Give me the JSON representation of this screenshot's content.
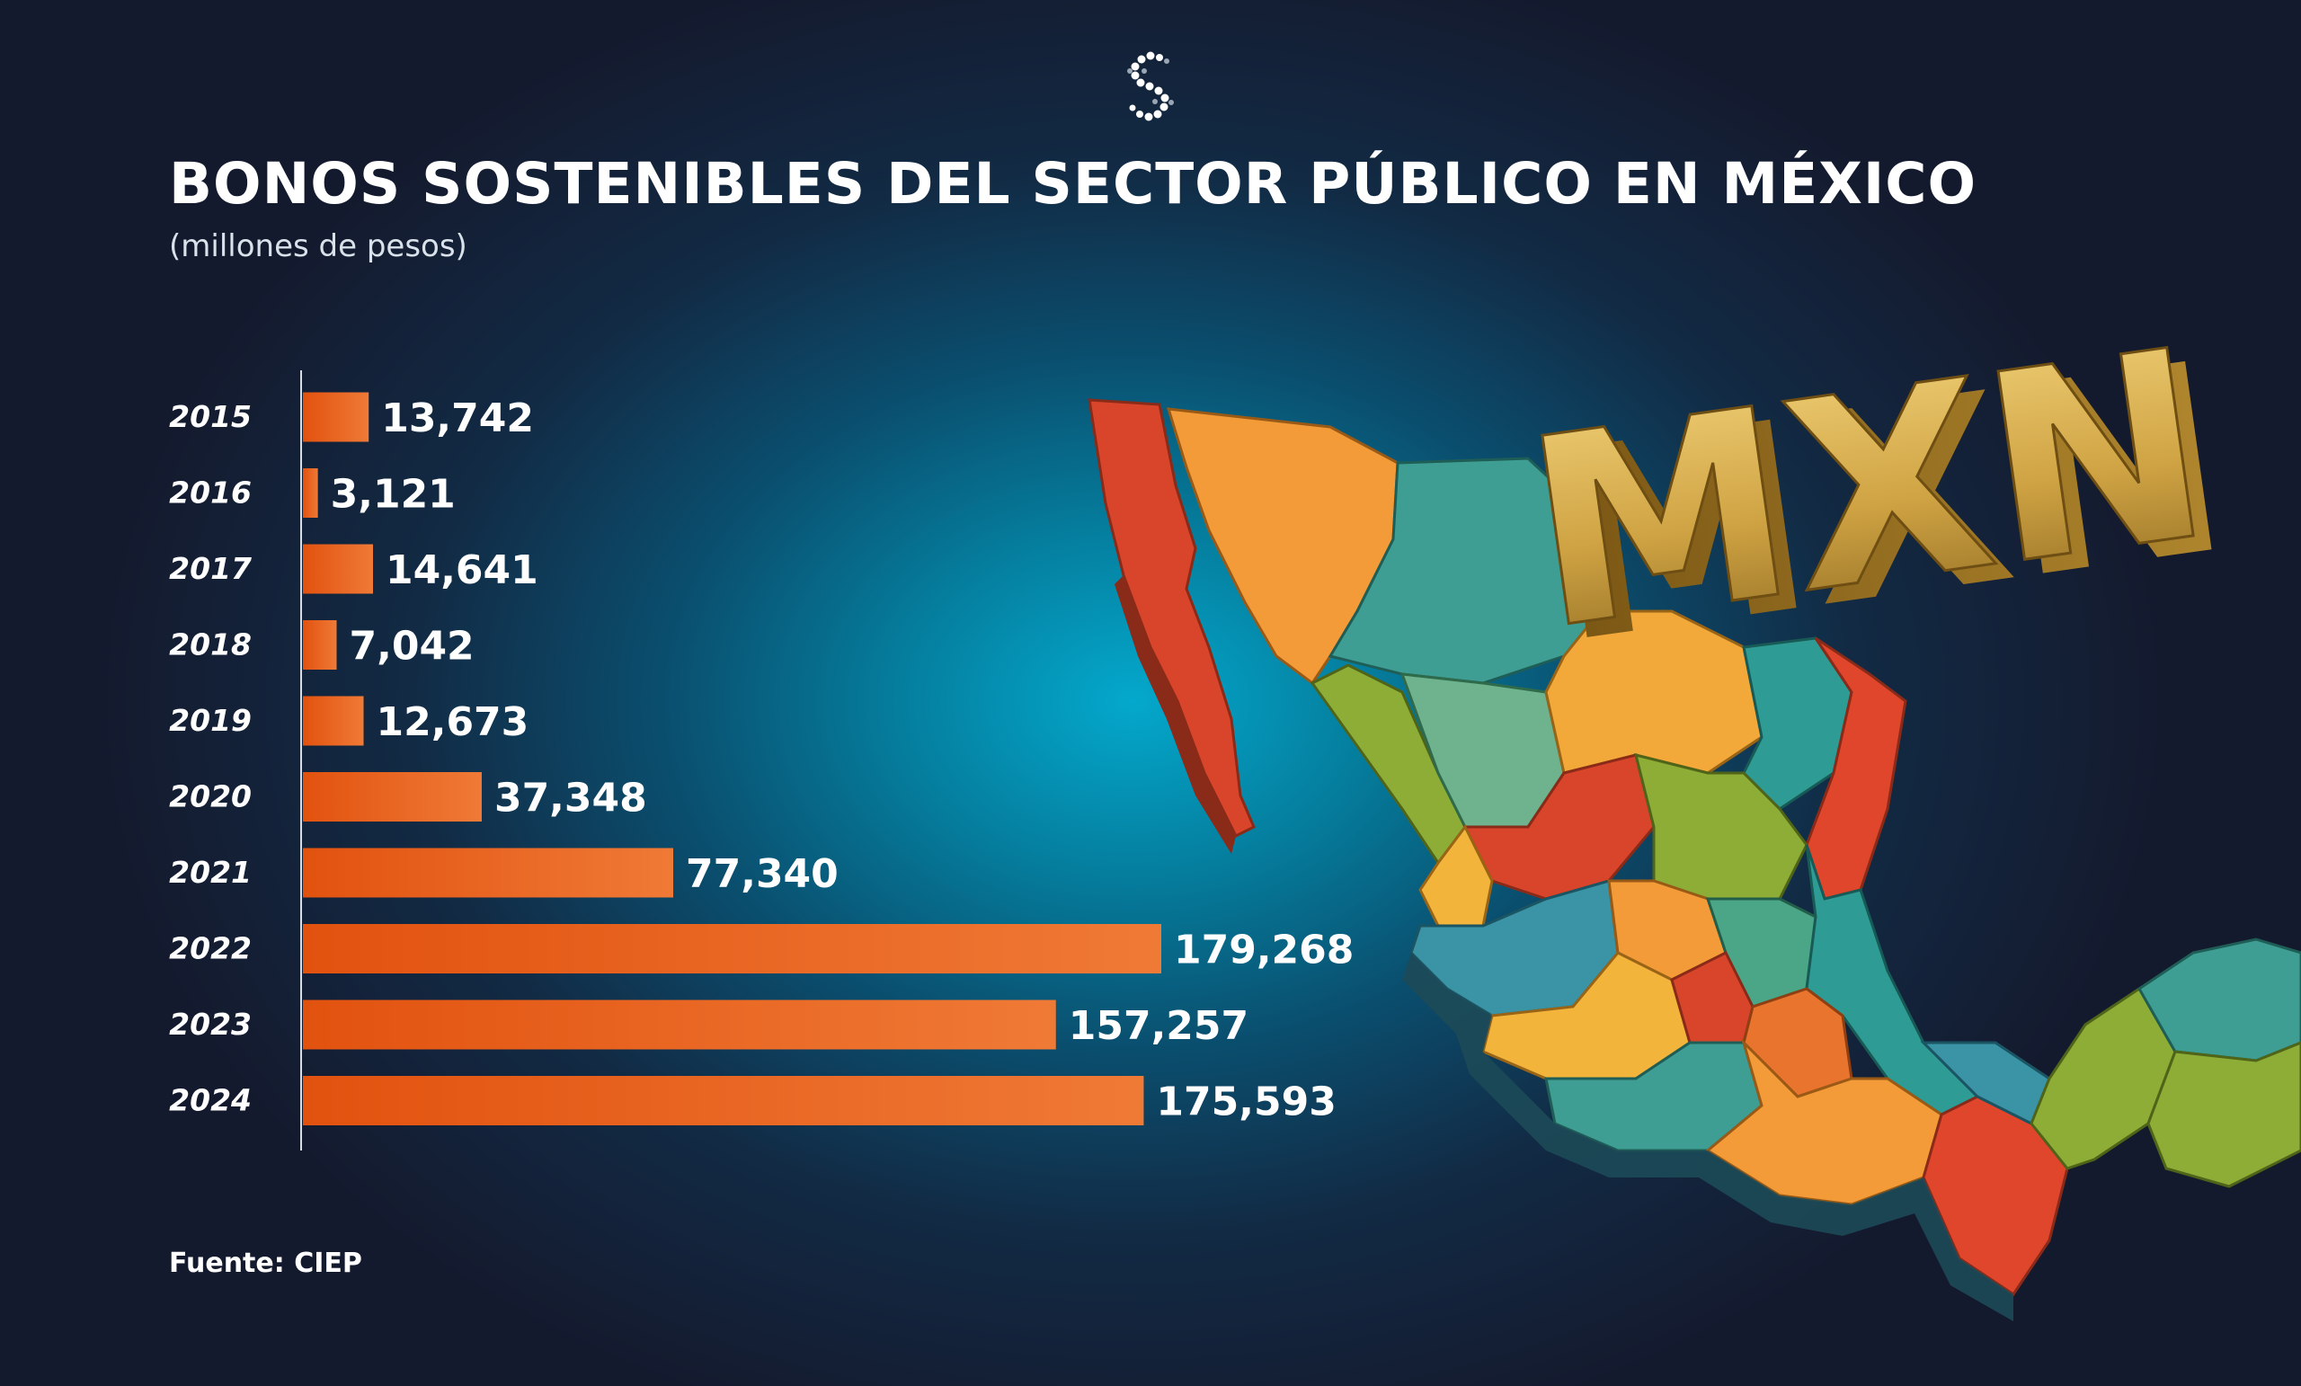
{
  "header": {
    "title": "BONOS SOSTENIBLES DEL SECTOR PÚBLICO EN MÉXICO",
    "subtitle": "(millones de pesos)"
  },
  "footer": {
    "source": "Fuente: CIEP"
  },
  "illustration": {
    "sign_text": "MXN"
  },
  "colors": {
    "bar_start": "#e2520f",
    "bar_end": "#ef7a36",
    "background_center": "#04a8cc",
    "background_edge": "#141a2e"
  },
  "chart_data": {
    "type": "bar",
    "orientation": "horizontal",
    "categories": [
      "2015",
      "2016",
      "2017",
      "2018",
      "2019",
      "2020",
      "2021",
      "2022",
      "2023",
      "2024"
    ],
    "values": [
      13742,
      3121,
      14641,
      7042,
      12673,
      37348,
      77340,
      179268,
      157257,
      175593
    ],
    "labels": [
      "13,742",
      "3,121",
      "14,641",
      "7,042",
      "12,673",
      "37,348",
      "77,340",
      "179,268",
      "157,257",
      "175,593"
    ],
    "title": "BONOS SOSTENIBLES DEL SECTOR PÚBLICO EN MÉXICO",
    "subtitle": "(millones de pesos)",
    "xlabel": "",
    "ylabel": "",
    "grid": false,
    "legend": "none"
  }
}
